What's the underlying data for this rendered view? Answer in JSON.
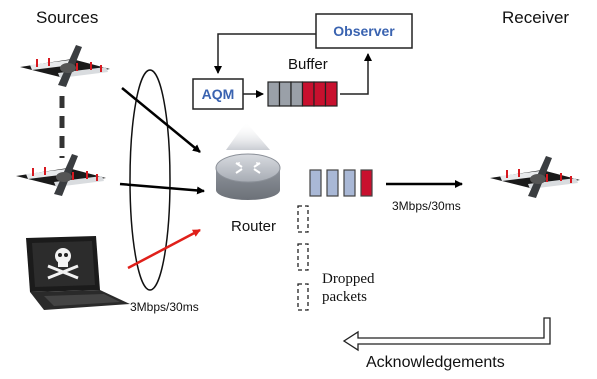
{
  "labels": {
    "sources": "Sources",
    "receiver": "Receiver",
    "observer": "Observer",
    "aqm": "AQM",
    "buffer": "Buffer",
    "router": "Router",
    "link_left": "3Mbps/30ms",
    "link_right": "3Mbps/30ms",
    "dropped_line1": "Dropped",
    "dropped_line2": "packets",
    "acknowledgements": "Acknowledgements"
  },
  "colors": {
    "box_text": "#3a63b0",
    "packet_red": "#c8102e",
    "packet_gray": "#9aa0a8",
    "packet_blue": "#a9b8d6",
    "attack_arrow": "#e0201a"
  },
  "buffer_packets": [
    "gray",
    "gray",
    "gray",
    "red",
    "red",
    "red"
  ],
  "link_packets": [
    "blue",
    "blue",
    "blue",
    "red"
  ]
}
